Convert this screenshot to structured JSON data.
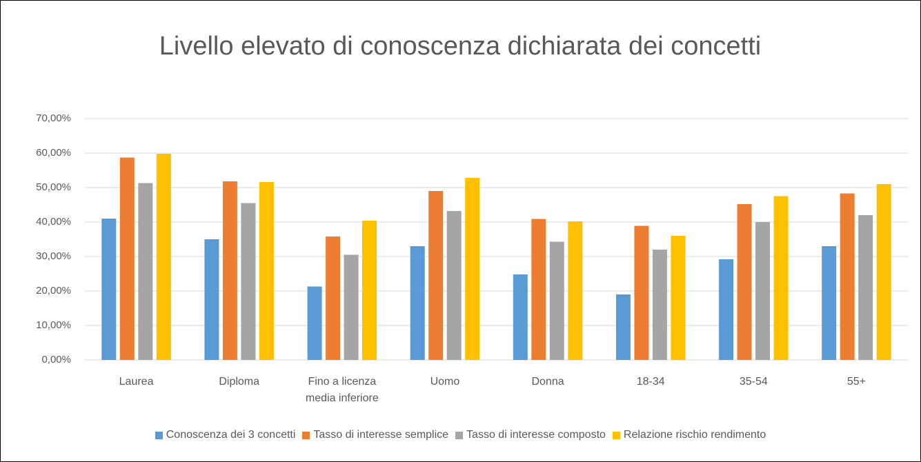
{
  "chart_data": {
    "type": "bar",
    "title": "Livello elevato di conoscenza dichiarata dei concetti",
    "categories": [
      "Laurea",
      "Diploma",
      "Fino a licenza media inferiore",
      "Uomo",
      "Donna",
      "18-34",
      "35-54",
      "55+"
    ],
    "series": [
      {
        "name": "Conoscenza dei 3 concetti",
        "color": "#5b9bd5",
        "values": [
          41,
          35,
          21.3,
          33,
          24.8,
          19,
          29.2,
          33
        ]
      },
      {
        "name": "Tasso di interesse semplice",
        "color": "#ed7d31",
        "values": [
          58.7,
          51.8,
          35.8,
          49,
          40.9,
          38.9,
          45.2,
          48.3
        ]
      },
      {
        "name": "Tasso di interesse composto",
        "color": "#a5a5a5",
        "values": [
          51.3,
          45.5,
          30.5,
          43.2,
          34.3,
          32,
          40,
          42
        ]
      },
      {
        "name": "Relazione rischio rendimento",
        "color": "#ffc000",
        "values": [
          59.8,
          51.6,
          40.4,
          52.8,
          40.2,
          36,
          47.5,
          51
        ]
      }
    ],
    "ylim": [
      0,
      70
    ],
    "yticks": [
      {
        "value": 0,
        "label": "0,00%"
      },
      {
        "value": 10,
        "label": "10,00%"
      },
      {
        "value": 20,
        "label": "20,00%"
      },
      {
        "value": 30,
        "label": "30,00%"
      },
      {
        "value": 40,
        "label": "40,00%"
      },
      {
        "value": 50,
        "label": "50,00%"
      },
      {
        "value": 60,
        "label": "60,00%"
      },
      {
        "value": 70,
        "label": "70,00%"
      }
    ],
    "grid": true,
    "legend": "bottom"
  }
}
